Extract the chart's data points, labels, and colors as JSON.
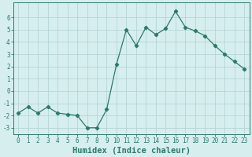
{
  "x": [
    0,
    1,
    2,
    3,
    4,
    5,
    6,
    7,
    8,
    9,
    10,
    11,
    12,
    13,
    14,
    15,
    16,
    17,
    18,
    19,
    20,
    21,
    22,
    23
  ],
  "y": [
    -1.8,
    -1.3,
    -1.8,
    -1.3,
    -1.8,
    -1.9,
    -2.0,
    -3.0,
    -3.0,
    -1.5,
    2.2,
    5.0,
    3.7,
    5.2,
    4.6,
    5.1,
    6.5,
    5.2,
    4.9,
    4.5,
    3.7,
    3.0,
    2.4,
    1.8
  ],
  "line_color": "#2d7a6a",
  "marker": "D",
  "marker_size": 2.2,
  "bg_color": "#d6eeee",
  "grid_color": "#b0d0d0",
  "xlabel": "Humidex (Indice chaleur)",
  "ylim": [
    -3.5,
    7.2
  ],
  "xlim": [
    -0.5,
    23.5
  ],
  "yticks": [
    -3,
    -2,
    -1,
    0,
    1,
    2,
    3,
    4,
    5,
    6
  ],
  "xticks": [
    0,
    1,
    2,
    3,
    4,
    5,
    6,
    7,
    8,
    9,
    10,
    11,
    12,
    13,
    14,
    15,
    16,
    17,
    18,
    19,
    20,
    21,
    22,
    23
  ],
  "tick_fontsize": 5.5,
  "xlabel_fontsize": 7.5
}
